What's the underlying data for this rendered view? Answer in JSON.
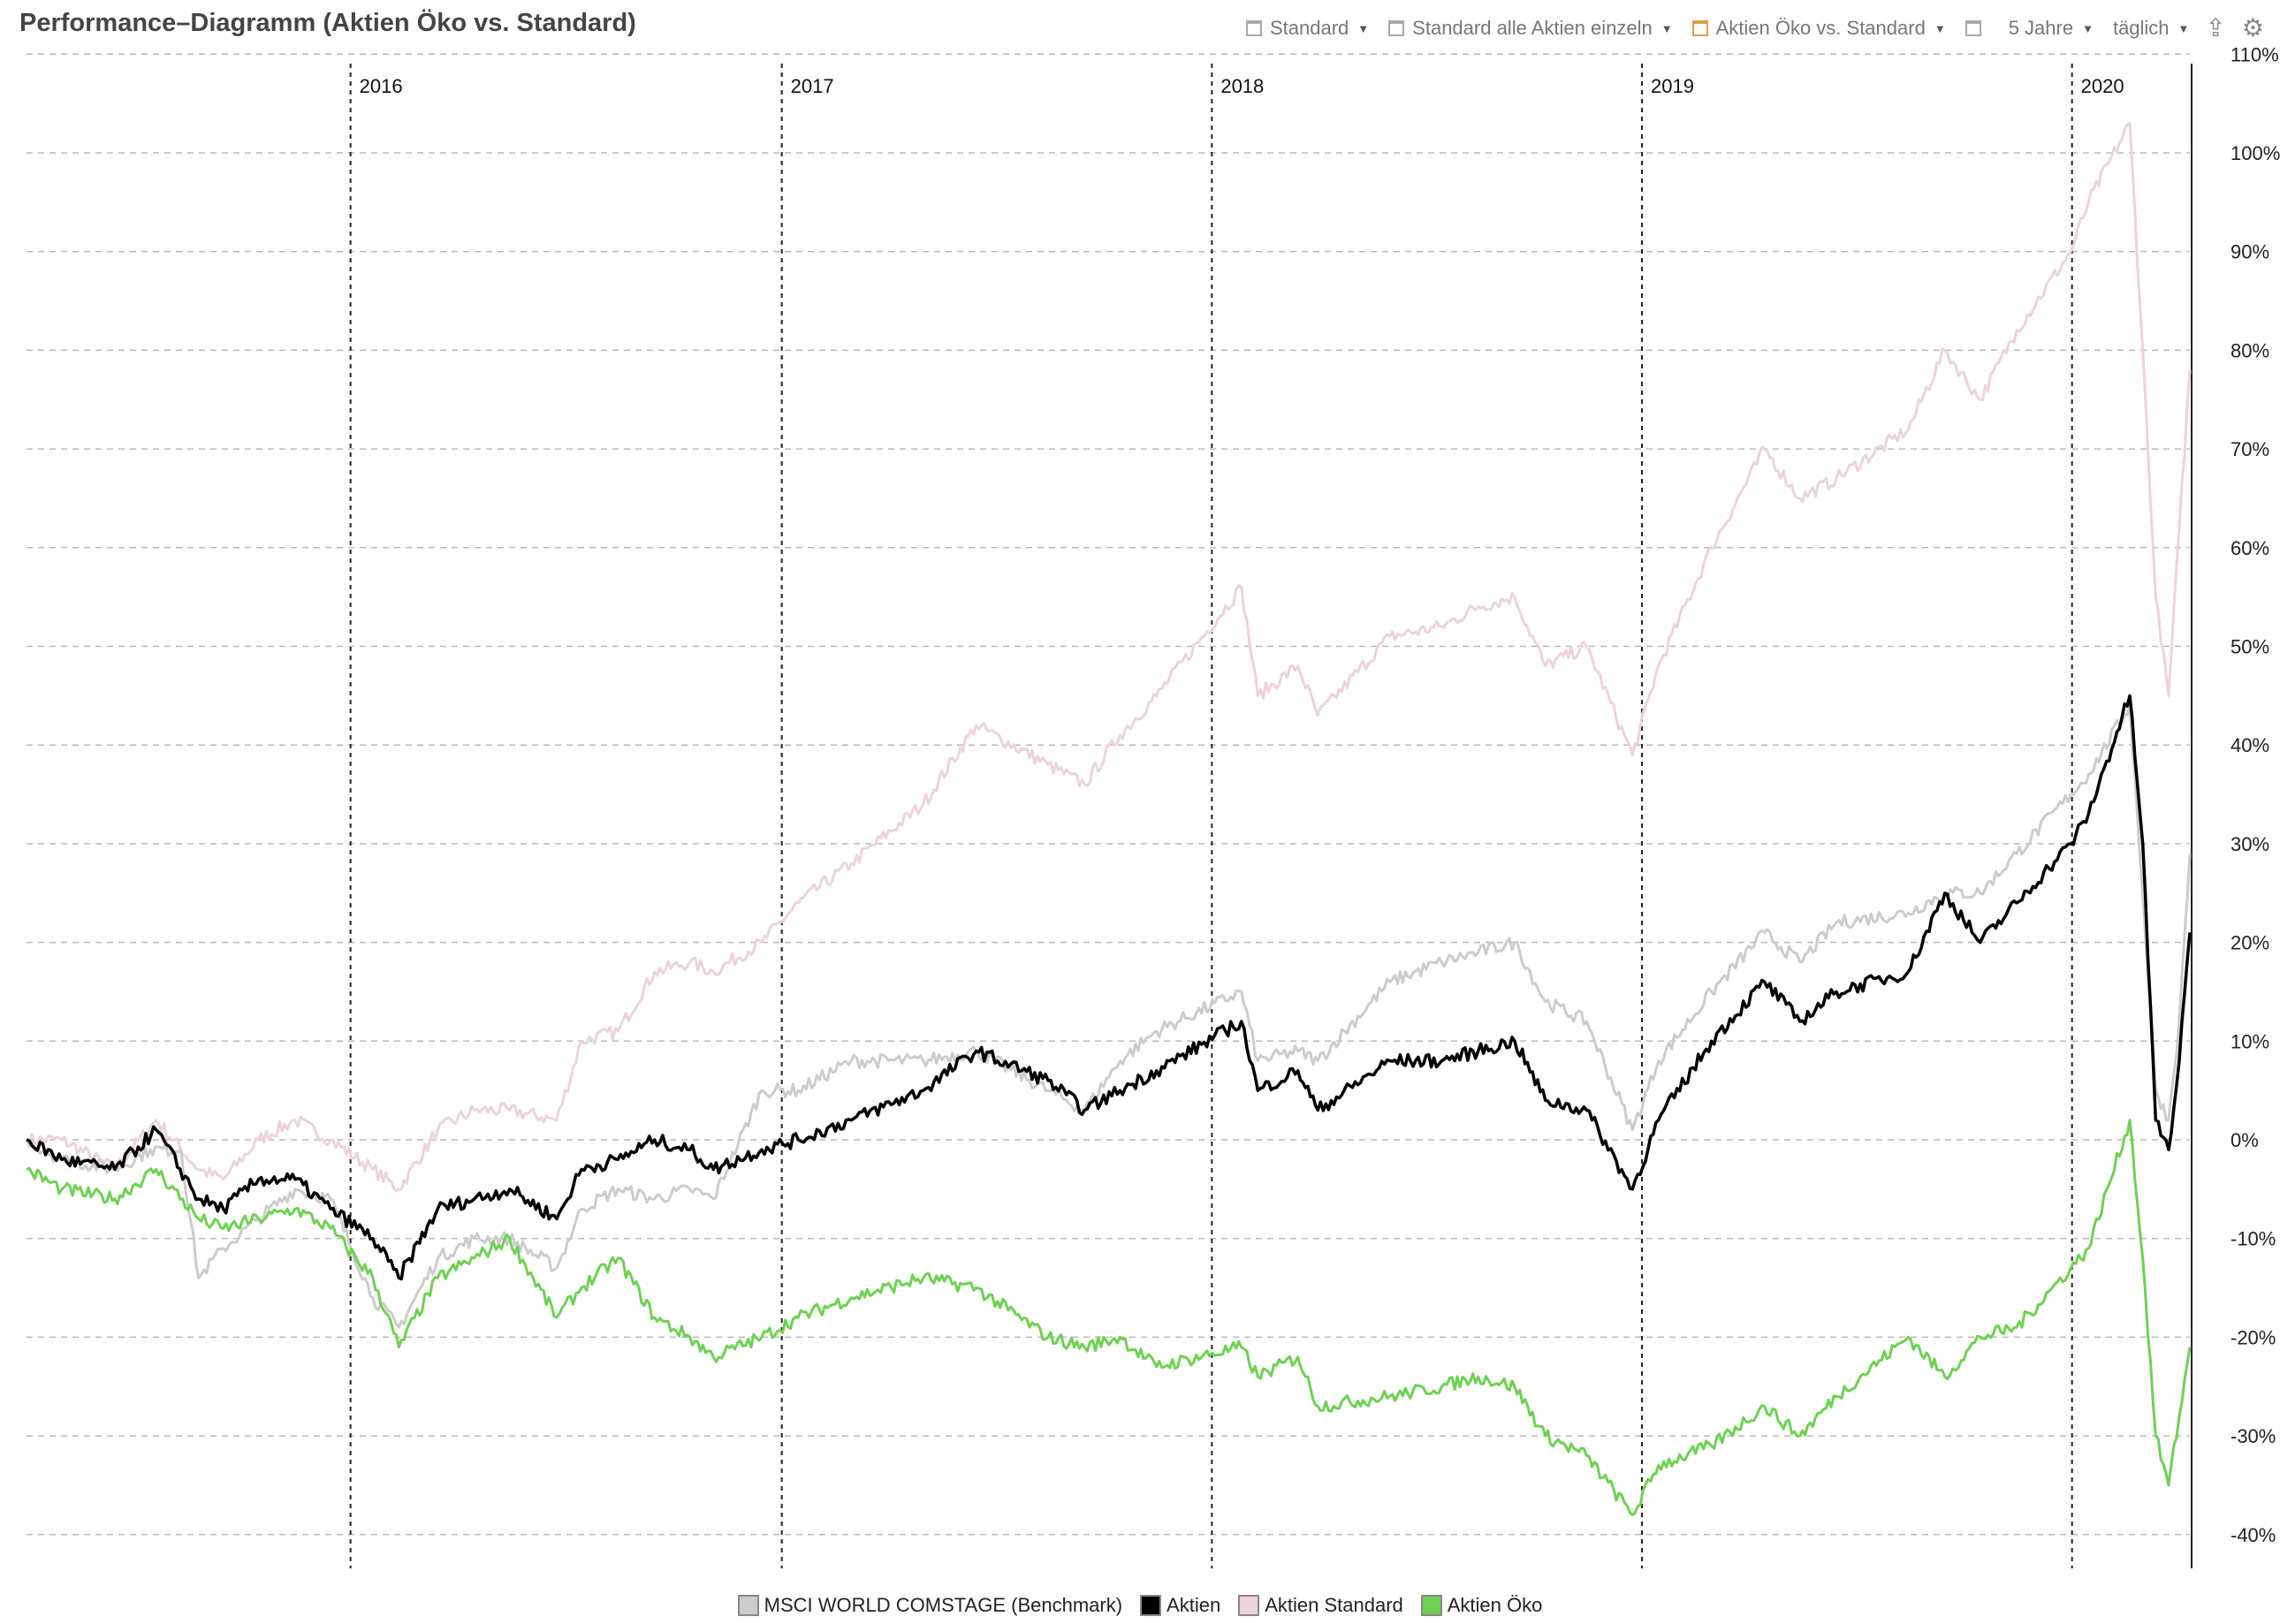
{
  "header": {
    "title": "Performance–Diagramm (Aktien Öko vs. Standard)",
    "toolbar": [
      {
        "label": "Standard",
        "active": false
      },
      {
        "label": "Standard alle Aktien einzeln",
        "active": false
      },
      {
        "label": "Aktien Öko vs. Standard",
        "active": true
      }
    ],
    "period": "5 Jahre",
    "interval": "täglich"
  },
  "chart_data": {
    "type": "line",
    "title": "Performance–Diagramm (Aktien Öko vs. Standard)",
    "x_axis": {
      "type": "date",
      "range": [
        "2015-04-01",
        "2020-04-10"
      ],
      "year_labels": [
        "2016",
        "2017",
        "2018",
        "2019",
        "2020"
      ]
    },
    "y_axis": {
      "unit": "%",
      "range": [
        -42,
        110
      ],
      "position": "right",
      "ticks": [
        -40,
        -30,
        -20,
        -10,
        0,
        10,
        20,
        30,
        40,
        50,
        60,
        70,
        80,
        90,
        100,
        110
      ]
    },
    "grid": {
      "horizontal": "dashed",
      "year_separators": "dashed"
    },
    "legend": {
      "position": "bottom"
    },
    "series": [
      {
        "name": "MSCI WORLD COMSTAGE (Benchmark)",
        "color": "#cccccc",
        "points": [
          [
            "2015-04-01",
            0
          ],
          [
            "2015-05-01",
            -2
          ],
          [
            "2015-06-15",
            -3
          ],
          [
            "2015-07-15",
            -1
          ],
          [
            "2015-08-10",
            -1
          ],
          [
            "2015-08-25",
            -14
          ],
          [
            "2015-09-15",
            -11
          ],
          [
            "2015-10-15",
            -8
          ],
          [
            "2015-11-15",
            -5
          ],
          [
            "2015-12-15",
            -6
          ],
          [
            "2016-01-20",
            -16
          ],
          [
            "2016-02-11",
            -19
          ],
          [
            "2016-03-15",
            -12
          ],
          [
            "2016-04-15",
            -10
          ],
          [
            "2016-05-15",
            -10
          ],
          [
            "2016-06-24",
            -13
          ],
          [
            "2016-07-15",
            -7
          ],
          [
            "2016-08-15",
            -5
          ],
          [
            "2016-09-15",
            -6
          ],
          [
            "2016-10-15",
            -5
          ],
          [
            "2016-11-04",
            -6
          ],
          [
            "2016-12-15",
            5
          ],
          [
            "2017-01-15",
            5
          ],
          [
            "2017-03-01",
            8
          ],
          [
            "2017-05-01",
            8
          ],
          [
            "2017-06-15",
            9
          ],
          [
            "2017-08-15",
            5
          ],
          [
            "2017-09-15",
            3
          ],
          [
            "2017-10-15",
            8
          ],
          [
            "2017-11-15",
            11
          ],
          [
            "2018-01-26",
            15
          ],
          [
            "2018-02-09",
            8
          ],
          [
            "2018-03-15",
            9
          ],
          [
            "2018-04-01",
            8
          ],
          [
            "2018-06-01",
            16
          ],
          [
            "2018-07-15",
            18
          ],
          [
            "2018-08-15",
            19
          ],
          [
            "2018-09-15",
            20
          ],
          [
            "2018-10-11",
            14
          ],
          [
            "2018-11-15",
            12
          ],
          [
            "2018-12-24",
            1
          ],
          [
            "2019-01-15",
            8
          ],
          [
            "2019-03-01",
            15
          ],
          [
            "2019-04-15",
            21
          ],
          [
            "2019-05-15",
            18
          ],
          [
            "2019-06-15",
            22
          ],
          [
            "2019-08-15",
            23
          ],
          [
            "2019-09-15",
            25
          ],
          [
            "2019-10-15",
            25
          ],
          [
            "2019-11-15",
            29
          ],
          [
            "2019-12-31",
            35
          ],
          [
            "2020-01-15",
            37
          ],
          [
            "2020-02-19",
            44
          ],
          [
            "2020-03-01",
            25
          ],
          [
            "2020-03-12",
            5
          ],
          [
            "2020-03-23",
            2
          ],
          [
            "2020-04-01",
            12
          ],
          [
            "2020-04-10",
            29
          ]
        ]
      },
      {
        "name": "Aktien",
        "color": "#000000",
        "points": [
          [
            "2015-04-01",
            0
          ],
          [
            "2015-05-01",
            -2
          ],
          [
            "2015-06-15",
            -3
          ],
          [
            "2015-07-20",
            1
          ],
          [
            "2015-08-25",
            -6
          ],
          [
            "2015-09-15",
            -7
          ],
          [
            "2015-10-15",
            -4
          ],
          [
            "2015-11-15",
            -4
          ],
          [
            "2015-12-15",
            -7
          ],
          [
            "2016-01-20",
            -10
          ],
          [
            "2016-02-11",
            -14
          ],
          [
            "2016-03-15",
            -7
          ],
          [
            "2016-04-15",
            -6
          ],
          [
            "2016-05-15",
            -5
          ],
          [
            "2016-06-24",
            -8
          ],
          [
            "2016-07-15",
            -3
          ],
          [
            "2016-08-15",
            -2
          ],
          [
            "2016-09-15",
            0
          ],
          [
            "2016-10-15",
            -1
          ],
          [
            "2016-11-04",
            -3
          ],
          [
            "2016-12-15",
            -1
          ],
          [
            "2017-01-15",
            0
          ],
          [
            "2017-03-01",
            2
          ],
          [
            "2017-05-01",
            5
          ],
          [
            "2017-06-15",
            9
          ],
          [
            "2017-08-15",
            6
          ],
          [
            "2017-09-15",
            3
          ],
          [
            "2017-10-15",
            5
          ],
          [
            "2017-11-15",
            7
          ],
          [
            "2018-01-26",
            12
          ],
          [
            "2018-02-09",
            5
          ],
          [
            "2018-03-15",
            7
          ],
          [
            "2018-04-01",
            3
          ],
          [
            "2018-06-01",
            8
          ],
          [
            "2018-07-15",
            8
          ],
          [
            "2018-08-15",
            9
          ],
          [
            "2018-09-15",
            10
          ],
          [
            "2018-10-11",
            4
          ],
          [
            "2018-11-15",
            3
          ],
          [
            "2018-12-24",
            -5
          ],
          [
            "2019-01-15",
            2
          ],
          [
            "2019-03-01",
            10
          ],
          [
            "2019-04-15",
            16
          ],
          [
            "2019-05-15",
            12
          ],
          [
            "2019-06-15",
            15
          ],
          [
            "2019-08-15",
            17
          ],
          [
            "2019-09-15",
            25
          ],
          [
            "2019-10-15",
            20
          ],
          [
            "2019-11-15",
            24
          ],
          [
            "2019-12-31",
            30
          ],
          [
            "2020-01-15",
            33
          ],
          [
            "2020-02-19",
            45
          ],
          [
            "2020-03-01",
            30
          ],
          [
            "2020-03-12",
            2
          ],
          [
            "2020-03-23",
            -1
          ],
          [
            "2020-04-01",
            8
          ],
          [
            "2020-04-10",
            21
          ]
        ]
      },
      {
        "name": "Aktien Standard",
        "color": "#ecd3db",
        "points": [
          [
            "2015-04-01",
            0
          ],
          [
            "2015-05-01",
            0
          ],
          [
            "2015-06-15",
            -3
          ],
          [
            "2015-07-20",
            2
          ],
          [
            "2015-08-25",
            -3
          ],
          [
            "2015-09-15",
            -4
          ],
          [
            "2015-10-15",
            0
          ],
          [
            "2015-11-15",
            2
          ],
          [
            "2015-12-15",
            0
          ],
          [
            "2016-01-20",
            -3
          ],
          [
            "2016-02-11",
            -5
          ],
          [
            "2016-03-15",
            1
          ],
          [
            "2016-04-15",
            3
          ],
          [
            "2016-05-15",
            3
          ],
          [
            "2016-06-24",
            2
          ],
          [
            "2016-07-15",
            10
          ],
          [
            "2016-08-15",
            11
          ],
          [
            "2016-09-15",
            17
          ],
          [
            "2016-10-15",
            18
          ],
          [
            "2016-11-04",
            17
          ],
          [
            "2016-12-15",
            20
          ],
          [
            "2017-01-15",
            24
          ],
          [
            "2017-03-01",
            28
          ],
          [
            "2017-05-01",
            34
          ],
          [
            "2017-06-15",
            42
          ],
          [
            "2017-08-15",
            38
          ],
          [
            "2017-09-15",
            36
          ],
          [
            "2017-10-15",
            41
          ],
          [
            "2017-11-15",
            45
          ],
          [
            "2018-01-26",
            56
          ],
          [
            "2018-02-09",
            45
          ],
          [
            "2018-03-15",
            48
          ],
          [
            "2018-04-01",
            43
          ],
          [
            "2018-06-01",
            51
          ],
          [
            "2018-07-15",
            52
          ],
          [
            "2018-08-15",
            54
          ],
          [
            "2018-09-15",
            55
          ],
          [
            "2018-10-11",
            48
          ],
          [
            "2018-11-15",
            50
          ],
          [
            "2018-12-24",
            39
          ],
          [
            "2019-01-15",
            48
          ],
          [
            "2019-03-01",
            60
          ],
          [
            "2019-04-15",
            70
          ],
          [
            "2019-05-15",
            65
          ],
          [
            "2019-06-15",
            67
          ],
          [
            "2019-08-15",
            72
          ],
          [
            "2019-09-15",
            80
          ],
          [
            "2019-10-15",
            75
          ],
          [
            "2019-11-15",
            82
          ],
          [
            "2019-12-31",
            90
          ],
          [
            "2020-01-15",
            95
          ],
          [
            "2020-02-19",
            103
          ],
          [
            "2020-03-01",
            80
          ],
          [
            "2020-03-12",
            55
          ],
          [
            "2020-03-23",
            45
          ],
          [
            "2020-04-01",
            62
          ],
          [
            "2020-04-10",
            78
          ]
        ]
      },
      {
        "name": "Aktien Öko",
        "color": "#6ed152",
        "points": [
          [
            "2015-04-01",
            -3
          ],
          [
            "2015-05-01",
            -5
          ],
          [
            "2015-06-15",
            -6
          ],
          [
            "2015-07-20",
            -3
          ],
          [
            "2015-08-25",
            -8
          ],
          [
            "2015-09-15",
            -9
          ],
          [
            "2015-10-15",
            -8
          ],
          [
            "2015-11-15",
            -7
          ],
          [
            "2015-12-15",
            -9
          ],
          [
            "2016-01-20",
            -14
          ],
          [
            "2016-02-11",
            -21
          ],
          [
            "2016-03-15",
            -14
          ],
          [
            "2016-04-15",
            -12
          ],
          [
            "2016-05-15",
            -10
          ],
          [
            "2016-06-24",
            -18
          ],
          [
            "2016-07-15",
            -15
          ],
          [
            "2016-08-15",
            -12
          ],
          [
            "2016-09-15",
            -18
          ],
          [
            "2016-10-15",
            -20
          ],
          [
            "2016-11-04",
            -22
          ],
          [
            "2016-12-15",
            -20
          ],
          [
            "2017-01-15",
            -18
          ],
          [
            "2017-03-01",
            -16
          ],
          [
            "2017-05-01",
            -14
          ],
          [
            "2017-06-15",
            -15
          ],
          [
            "2017-08-15",
            -20
          ],
          [
            "2017-09-15",
            -21
          ],
          [
            "2017-10-15",
            -20
          ],
          [
            "2017-11-15",
            -23
          ],
          [
            "2018-01-26",
            -21
          ],
          [
            "2018-02-09",
            -24
          ],
          [
            "2018-03-15",
            -22
          ],
          [
            "2018-04-01",
            -27
          ],
          [
            "2018-06-01",
            -26
          ],
          [
            "2018-07-15",
            -25
          ],
          [
            "2018-08-15",
            -24
          ],
          [
            "2018-09-15",
            -25
          ],
          [
            "2018-10-11",
            -30
          ],
          [
            "2018-11-15",
            -32
          ],
          [
            "2018-12-24",
            -38
          ],
          [
            "2019-01-15",
            -33
          ],
          [
            "2019-03-01",
            -31
          ],
          [
            "2019-04-15",
            -27
          ],
          [
            "2019-05-15",
            -30
          ],
          [
            "2019-06-15",
            -26
          ],
          [
            "2019-08-15",
            -20
          ],
          [
            "2019-09-15",
            -24
          ],
          [
            "2019-10-15",
            -20
          ],
          [
            "2019-11-15",
            -19
          ],
          [
            "2019-12-31",
            -13
          ],
          [
            "2020-01-15",
            -11
          ],
          [
            "2020-02-19",
            2
          ],
          [
            "2020-03-01",
            -12
          ],
          [
            "2020-03-12",
            -30
          ],
          [
            "2020-03-23",
            -35
          ],
          [
            "2020-04-01",
            -28
          ],
          [
            "2020-04-10",
            -21
          ]
        ]
      }
    ]
  },
  "legend_items": [
    {
      "label": "MSCI WORLD COMSTAGE (Benchmark)",
      "color": "#cccccc"
    },
    {
      "label": "Aktien",
      "color": "#000000"
    },
    {
      "label": "Aktien Standard",
      "color": "#ecd3db"
    },
    {
      "label": "Aktien Öko",
      "color": "#6ed152"
    }
  ]
}
